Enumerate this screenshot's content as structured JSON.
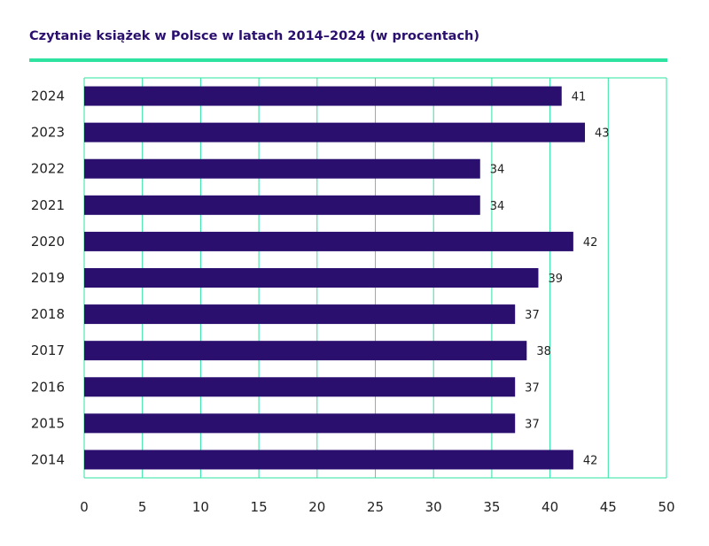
{
  "chart_data": {
    "type": "bar",
    "orientation": "horizontal",
    "title": "Czytanie książek w Polsce w latach 2014–2024 (w procentach)",
    "categories": [
      "2024",
      "2023",
      "2022",
      "2021",
      "2020",
      "2019",
      "2018",
      "2017",
      "2016",
      "2015",
      "2014"
    ],
    "values": [
      41,
      43,
      34,
      34,
      42,
      39,
      37,
      38,
      37,
      37,
      42
    ],
    "value_labels": [
      "41",
      "43",
      "34",
      "34",
      "42",
      "39",
      "37",
      "38",
      "37",
      "37",
      "42"
    ],
    "xticks": [
      0,
      5,
      10,
      15,
      20,
      25,
      30,
      35,
      40,
      45,
      50
    ],
    "xlim": [
      0,
      50
    ],
    "xlabel": "",
    "ylabel": "",
    "grid": true,
    "bar_color": "#2a0f6e",
    "grid_color": "#2ee3a0",
    "title_color": "#2a0f6e"
  }
}
